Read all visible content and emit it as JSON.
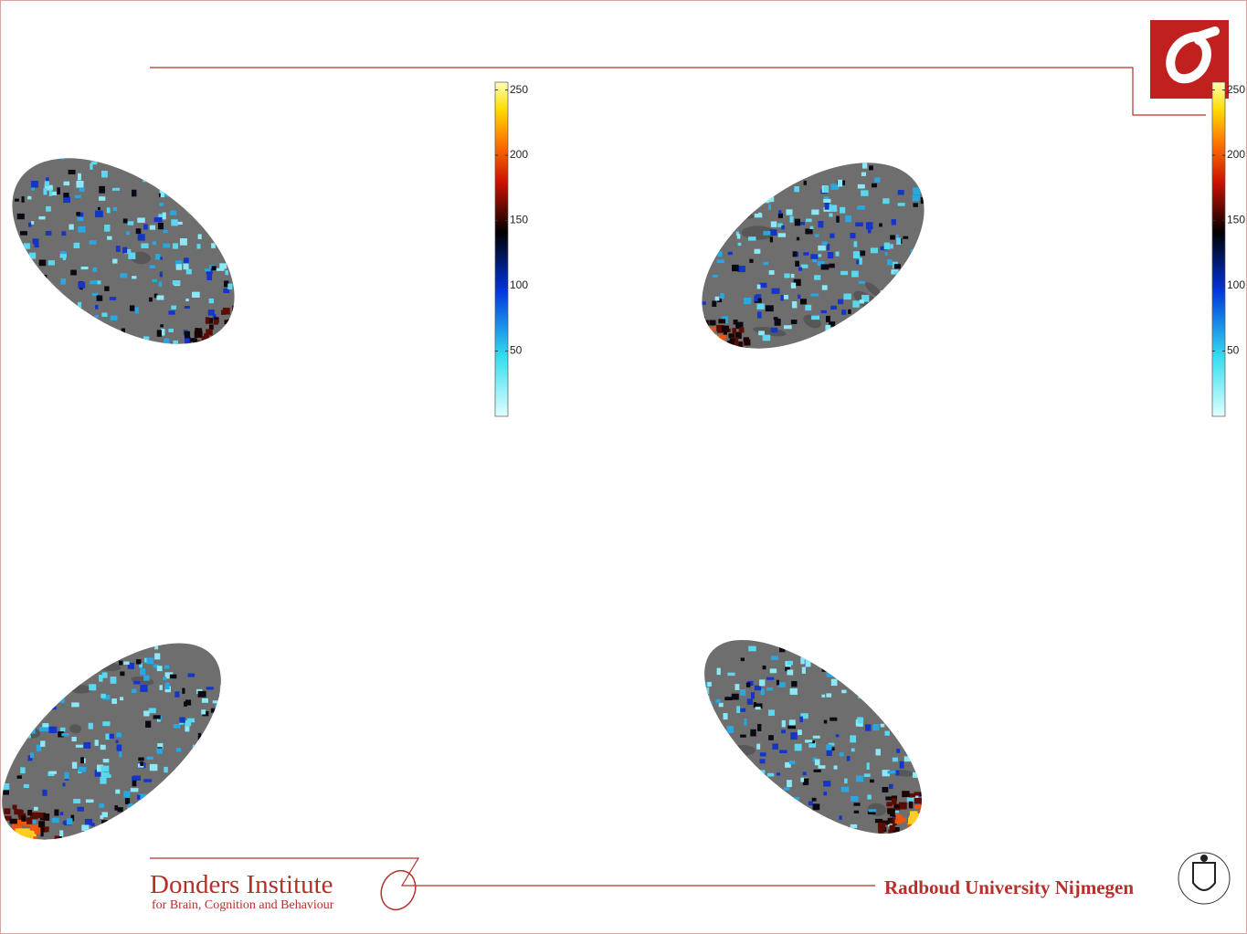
{
  "colorbars": [
    {
      "clim": [
        0,
        256
      ],
      "ticks": [
        50,
        100,
        150,
        200,
        250
      ]
    },
    {
      "clim": [
        0,
        256
      ],
      "ticks": [
        50,
        100,
        150,
        200,
        250
      ]
    }
  ],
  "footer": {
    "institute": "Donders Institute",
    "subtitle": "for Brain, Cognition and Behaviour",
    "university": "Radboud University Nijmegen"
  }
}
